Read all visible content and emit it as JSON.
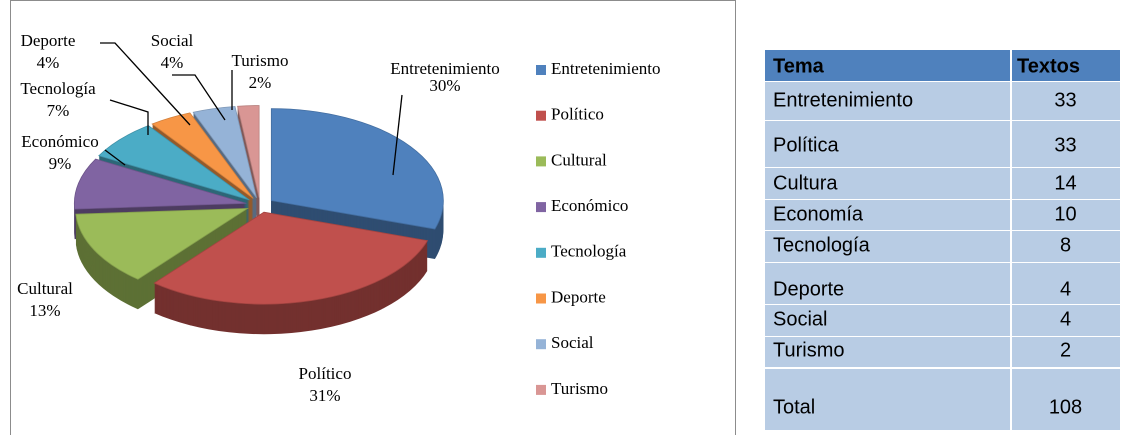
{
  "chart_data": {
    "type": "pie",
    "categories": [
      "Entretenimiento",
      "Político",
      "Cultural",
      "Económico",
      "Tecnología",
      "Deporte",
      "Social",
      "Turismo"
    ],
    "values": [
      30,
      31,
      13,
      9,
      7,
      4,
      4,
      2
    ],
    "value_labels": [
      "30%",
      "31%",
      "13%",
      "9%",
      "7%",
      "4%",
      "4%",
      "2%"
    ],
    "colors": [
      "#4f81bd",
      "#c0504d",
      "#9bbb59",
      "#8064a2",
      "#4bacc6",
      "#f79646",
      "#95b3d7",
      "#d99694"
    ],
    "legend": "right"
  },
  "table": {
    "header": [
      "Tema",
      "Textos"
    ],
    "rows": [
      [
        "Entretenimiento",
        33
      ],
      [
        "Política",
        33
      ],
      [
        "Cultura",
        14
      ],
      [
        "Economía",
        10
      ],
      [
        "Tecnología",
        8
      ],
      [
        "Deporte",
        4
      ],
      [
        "Social",
        4
      ],
      [
        "Turismo",
        2
      ],
      [
        "Total",
        108
      ]
    ]
  }
}
